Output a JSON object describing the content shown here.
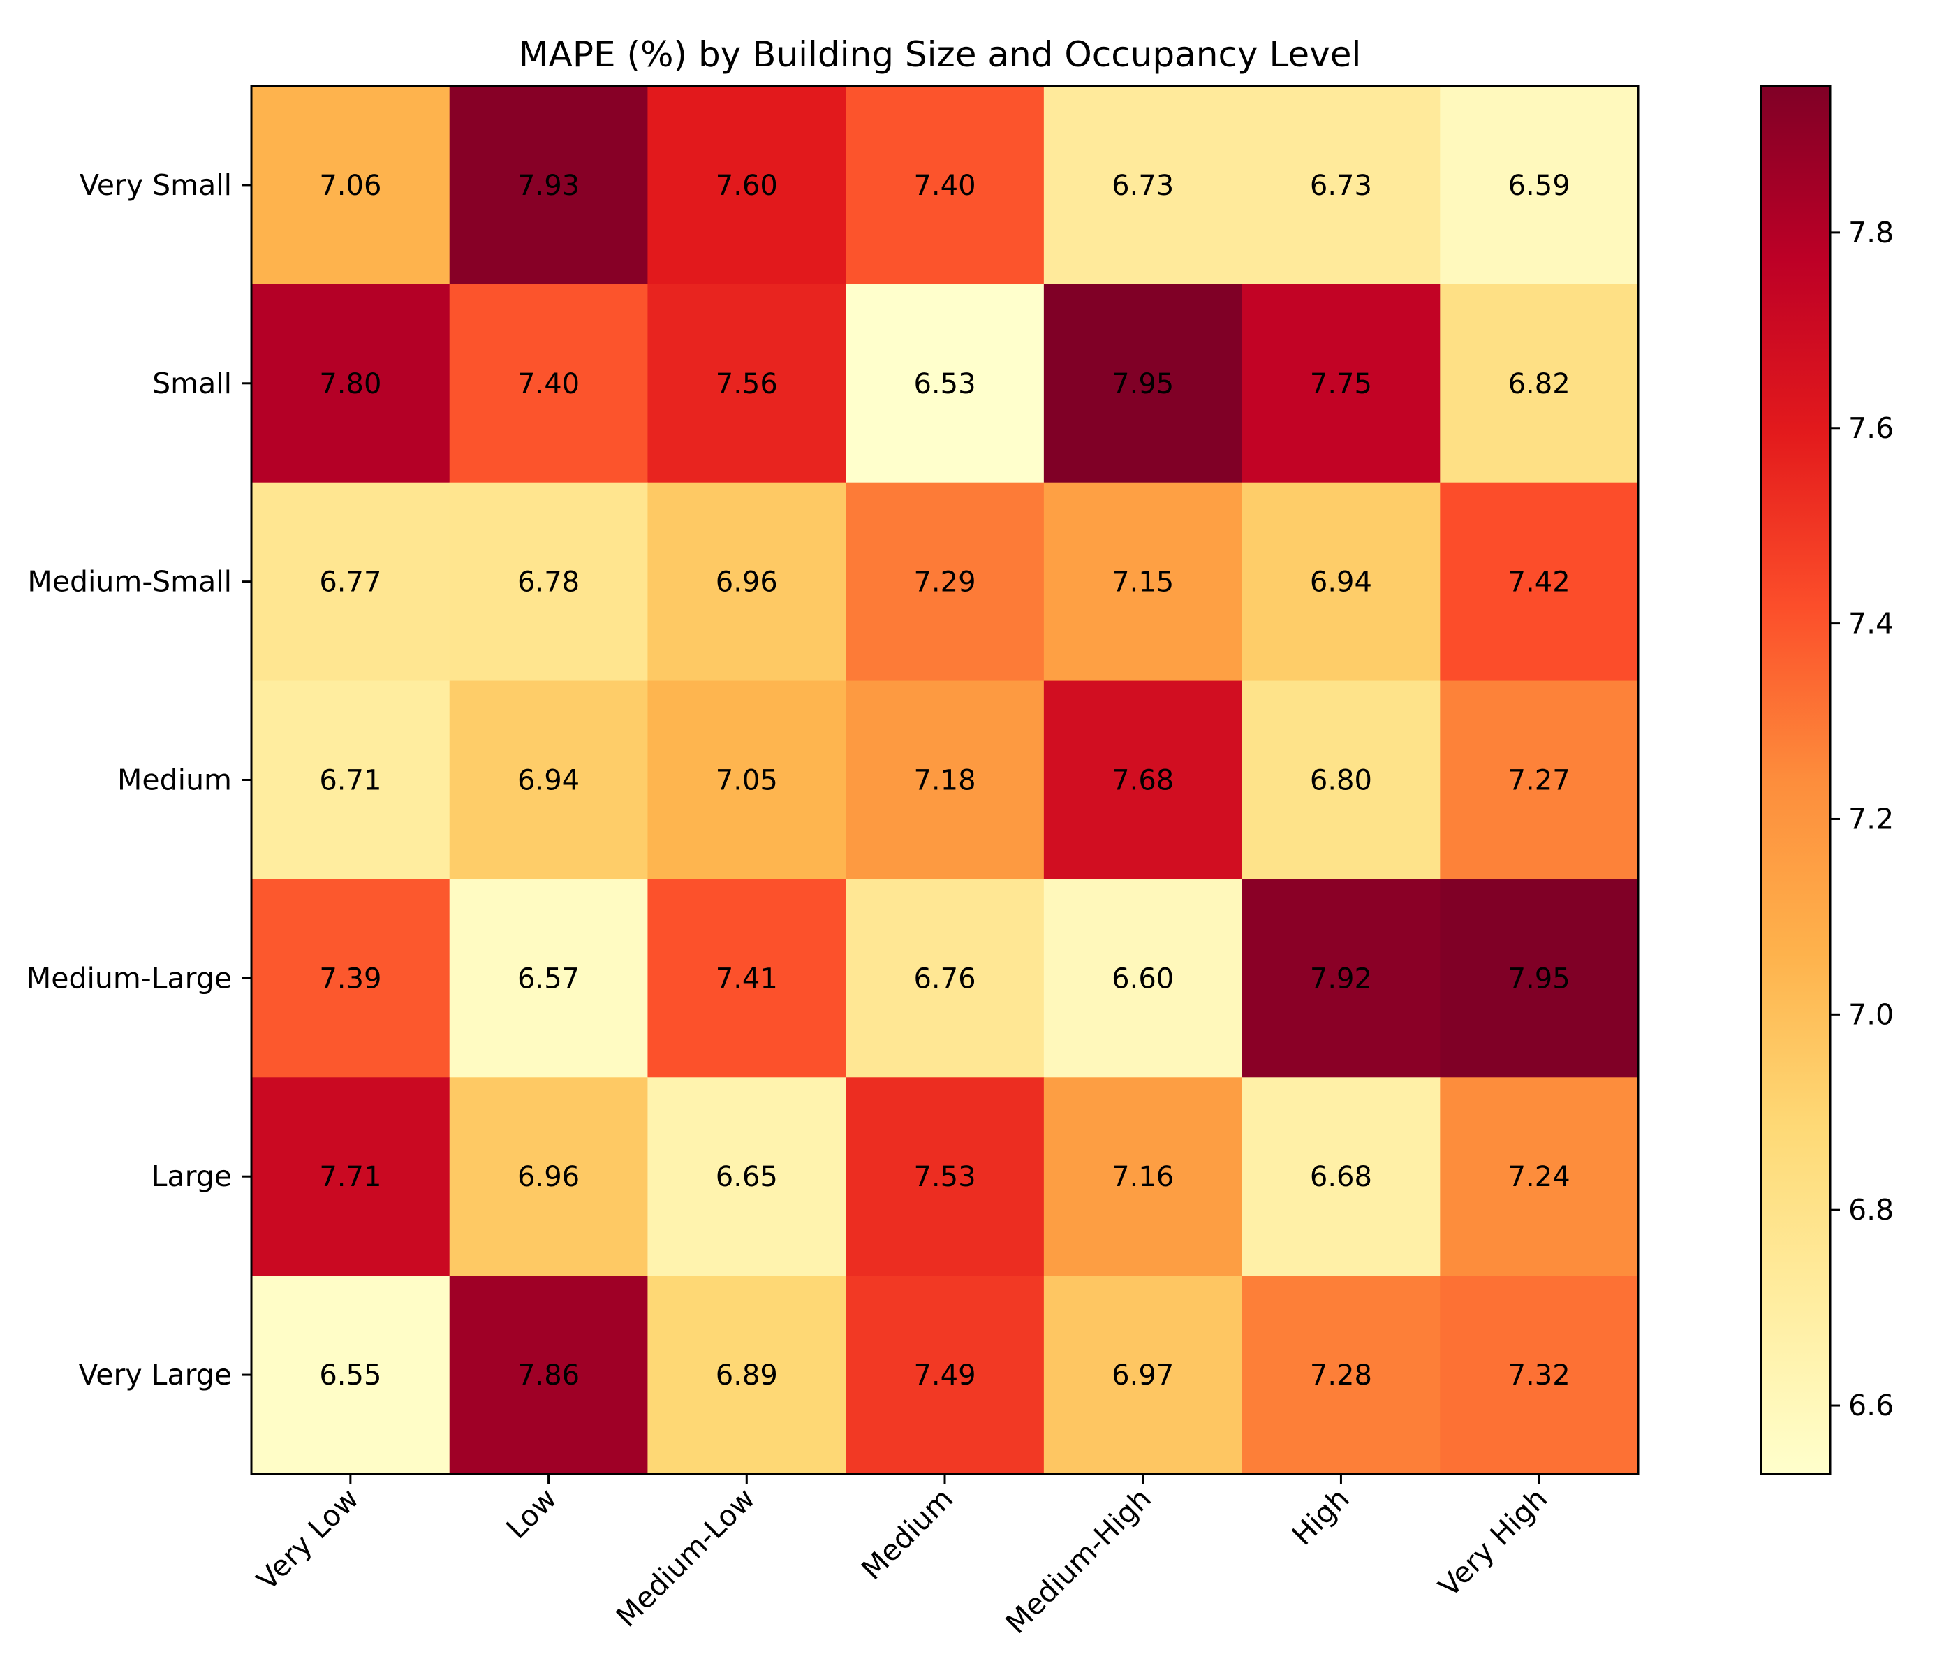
{
  "chart_data": {
    "type": "heatmap",
    "title": "MAPE (%) by Building Size and Occupancy Level",
    "x_categories": [
      "Very Low",
      "Low",
      "Medium-Low",
      "Medium",
      "Medium-High",
      "High",
      "Very High"
    ],
    "y_categories": [
      "Very Small",
      "Small",
      "Medium-Small",
      "Medium",
      "Medium-Large",
      "Large",
      "Very Large"
    ],
    "values": [
      [
        7.06,
        7.93,
        7.6,
        7.4,
        6.73,
        6.73,
        6.59
      ],
      [
        7.8,
        7.4,
        7.56,
        6.53,
        7.95,
        7.75,
        6.82
      ],
      [
        6.77,
        6.78,
        6.96,
        7.29,
        7.15,
        6.94,
        7.42
      ],
      [
        6.71,
        6.94,
        7.05,
        7.18,
        7.68,
        6.8,
        7.27
      ],
      [
        7.39,
        6.57,
        7.41,
        6.76,
        6.6,
        7.92,
        7.95
      ],
      [
        7.71,
        6.96,
        6.65,
        7.53,
        7.16,
        6.68,
        7.24
      ],
      [
        6.55,
        7.86,
        6.89,
        7.49,
        6.97,
        7.28,
        7.32
      ]
    ],
    "value_format_decimals": 2,
    "colormap": "YlOrRd",
    "color_range": [
      6.53,
      7.95
    ],
    "colorbar_ticks": [
      6.6,
      6.8,
      7.0,
      7.2,
      7.4,
      7.6,
      7.8
    ],
    "colorbar_tick_labels": [
      "6.6",
      "6.8",
      "7.0",
      "7.2",
      "7.4",
      "7.6",
      "7.8"
    ],
    "colorbar_stops": [
      "#ffffcc",
      "#ffeda0",
      "#fed976",
      "#feb24c",
      "#fd8d3c",
      "#fc4e2a",
      "#e31a1c",
      "#bd0026",
      "#800026"
    ]
  }
}
